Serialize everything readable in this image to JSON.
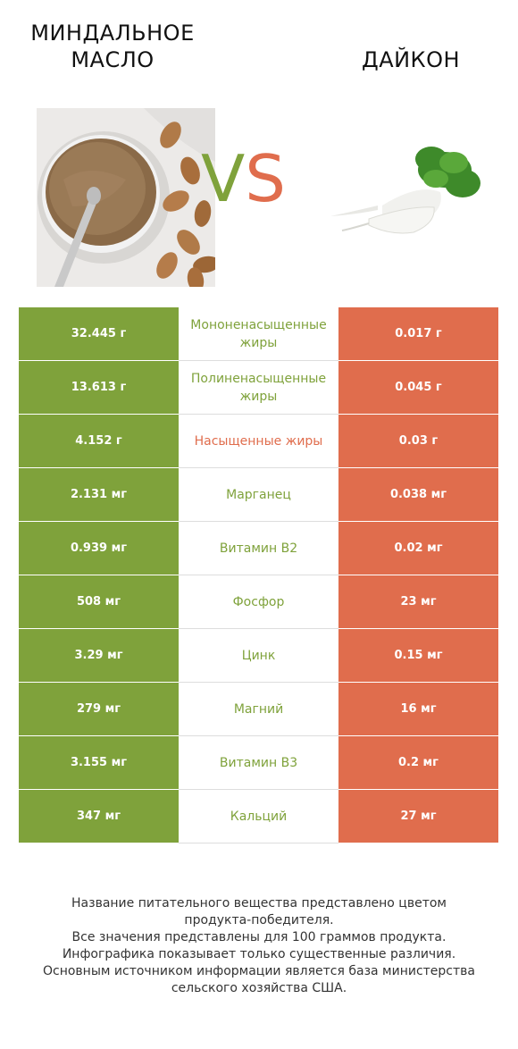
{
  "header": {
    "left_title_line1": "МИНДАЛЬНОЕ",
    "left_title_line2": "МАСЛО",
    "right_title": "ДАЙКОН",
    "vs_v": "V",
    "vs_s": "S"
  },
  "colors": {
    "left_accent": "#7fa23b",
    "right_accent": "#e06d4d"
  },
  "rows": [
    {
      "left": "32.445 г",
      "nutrient": "Мононенасыщенные жиры",
      "right": "0.017 г",
      "winner": "left"
    },
    {
      "left": "13.613 г",
      "nutrient": "Полиненасыщенные жиры",
      "right": "0.045 г",
      "winner": "left"
    },
    {
      "left": "4.152 г",
      "nutrient": "Насыщенные жиры",
      "right": "0.03 г",
      "winner": "right"
    },
    {
      "left": "2.131 мг",
      "nutrient": "Марганец",
      "right": "0.038 мг",
      "winner": "left"
    },
    {
      "left": "0.939 мг",
      "nutrient": "Витамин B2",
      "right": "0.02 мг",
      "winner": "left"
    },
    {
      "left": "508 мг",
      "nutrient": "Фосфор",
      "right": "23 мг",
      "winner": "left"
    },
    {
      "left": "3.29 мг",
      "nutrient": "Цинк",
      "right": "0.15 мг",
      "winner": "left"
    },
    {
      "left": "279 мг",
      "nutrient": "Магний",
      "right": "16 мг",
      "winner": "left"
    },
    {
      "left": "3.155 мг",
      "nutrient": "Витамин B3",
      "right": "0.2 мг",
      "winner": "left"
    },
    {
      "left": "347 мг",
      "nutrient": "Кальций",
      "right": "27 мг",
      "winner": "left"
    }
  ],
  "footer": {
    "line1": "Название питательного вещества представлено цветом",
    "line2": "продукта-победителя.",
    "line3": "Все значения представлены для 100 граммов продукта.",
    "line4": "Инфографика показывает только существенные различия.",
    "line5": "Основным источником информации является база министерства",
    "line6": "сельского хозяйства США."
  }
}
